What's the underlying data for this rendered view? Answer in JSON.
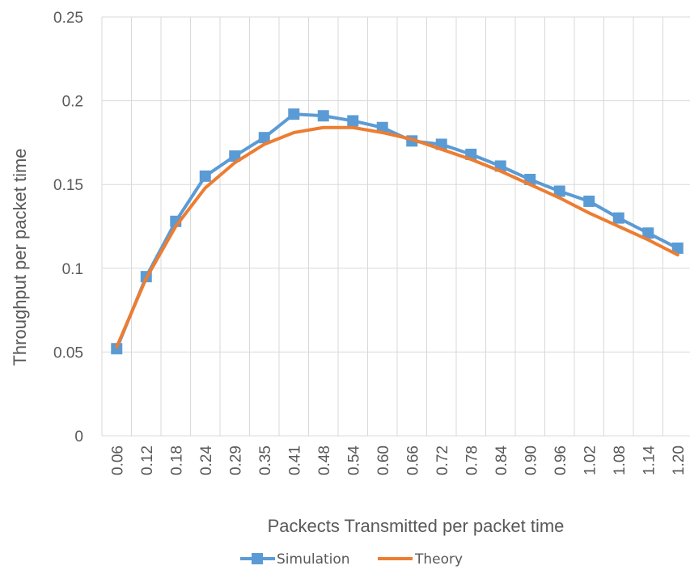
{
  "chart_data": {
    "type": "line",
    "title": "",
    "xlabel": "Packects Transmitted per packet time",
    "ylabel": "Throughput per packet time",
    "categories": [
      "0.06",
      "0.12",
      "0.18",
      "0.24",
      "0.29",
      "0.35",
      "0.41",
      "0.48",
      "0.54",
      "0.60",
      "0.66",
      "0.72",
      "0.78",
      "0.84",
      "0.90",
      "0.96",
      "1.02",
      "1.08",
      "1.14",
      "1.20"
    ],
    "yticks": [
      "0",
      "0.05",
      "0.1",
      "0.15",
      "0.2",
      "0.25"
    ],
    "ylim": [
      0,
      0.25
    ],
    "grid": true,
    "legend_position": "bottom",
    "series": [
      {
        "name": "Simulation",
        "color": "#5B9BD5",
        "marker": "square",
        "values": [
          0.052,
          0.095,
          0.128,
          0.155,
          0.167,
          0.178,
          0.192,
          0.191,
          0.188,
          0.184,
          0.176,
          0.174,
          0.168,
          0.161,
          0.153,
          0.146,
          0.14,
          0.13,
          0.121,
          0.112
        ]
      },
      {
        "name": "Theory",
        "color": "#ED7D31",
        "marker": "none",
        "values": [
          0.053,
          0.094,
          0.125,
          0.148,
          0.163,
          0.174,
          0.181,
          0.184,
          0.184,
          0.181,
          0.177,
          0.171,
          0.165,
          0.158,
          0.15,
          0.142,
          0.133,
          0.125,
          0.117,
          0.108
        ]
      }
    ]
  }
}
